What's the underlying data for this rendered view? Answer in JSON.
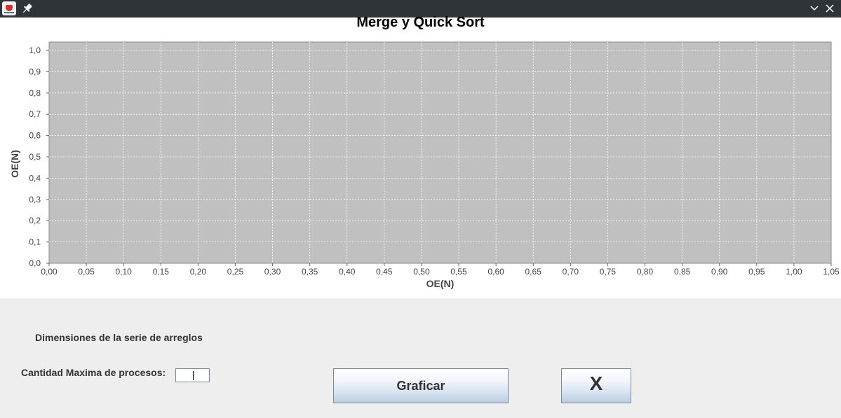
{
  "window": {
    "icons": {
      "app": "java-app-icon",
      "pin": "pin-icon",
      "minimize": "chevron-down-icon",
      "close": "close-icon"
    }
  },
  "chart_data": {
    "type": "line",
    "title": "Merge y Quick Sort",
    "xlabel": "OE(N)",
    "ylabel": "OE(N)",
    "xlim": [
      0,
      1.05
    ],
    "ylim": [
      0,
      1.0
    ],
    "x_ticks": [
      "0,00",
      "0,05",
      "0,10",
      "0,15",
      "0,20",
      "0,25",
      "0,30",
      "0,35",
      "0,40",
      "0,45",
      "0,50",
      "0,55",
      "0,60",
      "0,65",
      "0,70",
      "0,75",
      "0,80",
      "0,85",
      "0,90",
      "0,95",
      "1,00",
      "1,05"
    ],
    "y_ticks": [
      "0,0",
      "0,1",
      "0,2",
      "0,3",
      "0,4",
      "0,5",
      "0,6",
      "0,7",
      "0,8",
      "0,9",
      "1,0"
    ],
    "series": [],
    "grid": true,
    "plot_background": "#c0c0c0",
    "grid_color": "#ffffff"
  },
  "form": {
    "series_label": "Dimensiones de la serie de arreglos",
    "max_label": "Cantidad Maxima de procesos:",
    "max_value": "",
    "graficar_label": "Graficar",
    "close_label": "X"
  }
}
